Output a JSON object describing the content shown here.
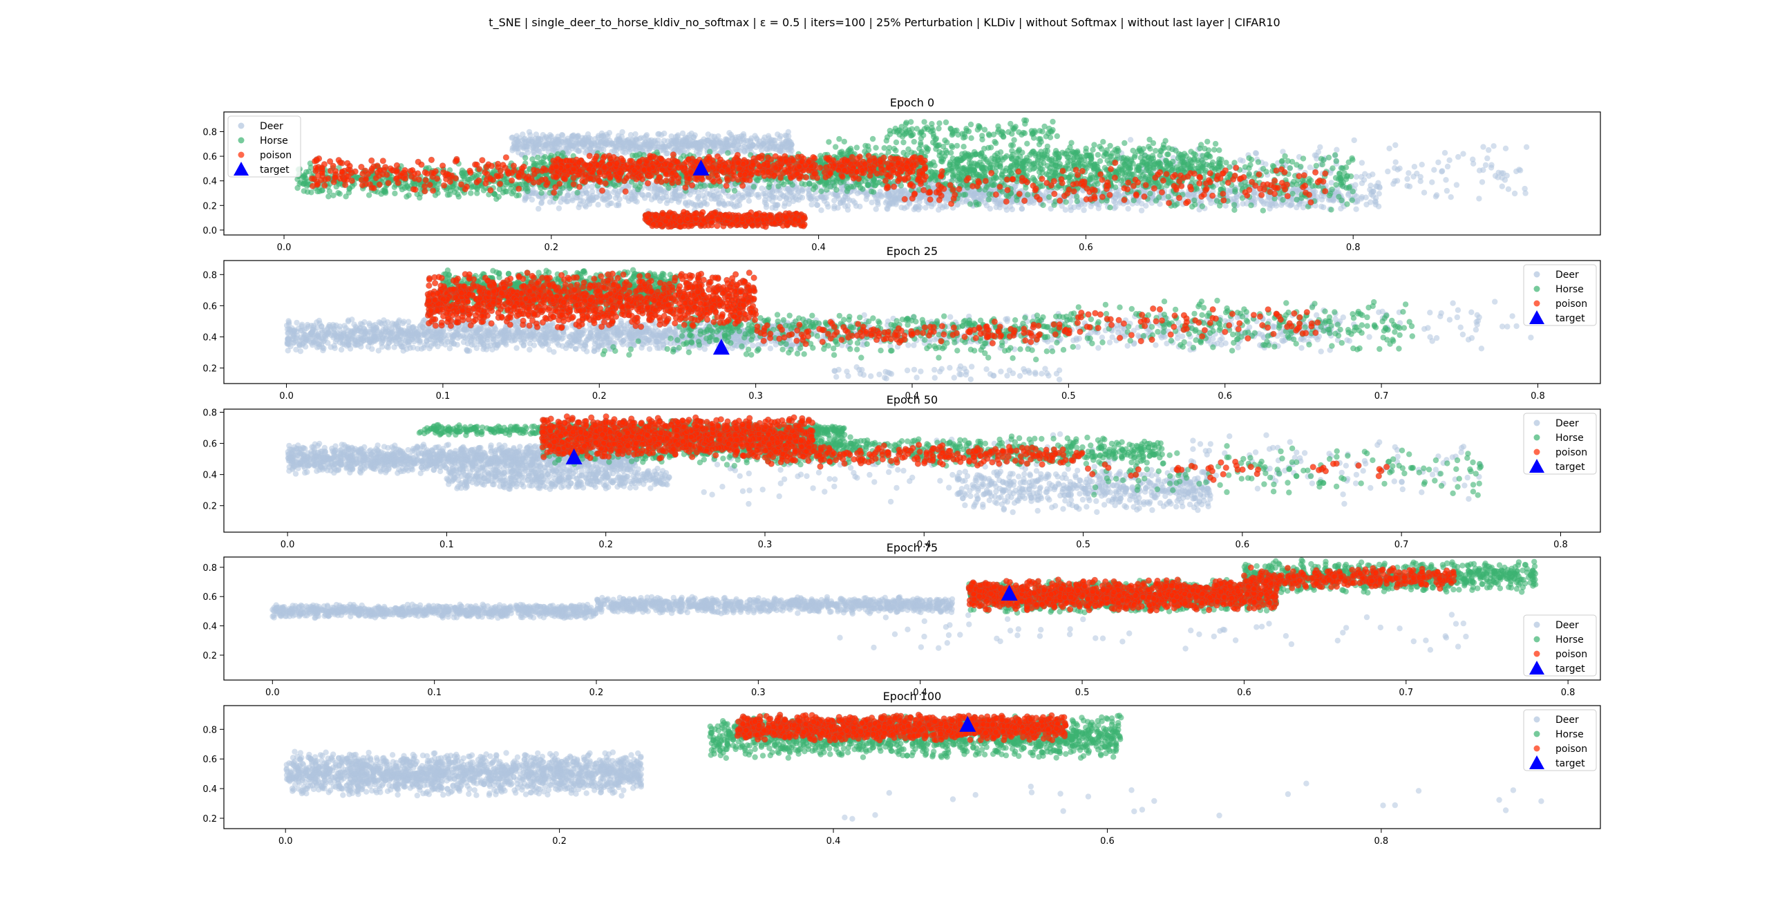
{
  "figure": {
    "suptitle": "t_SNE | single_deer_to_horse_kldiv_no_softmax | ε = 0.5 | iters=100 | 25% Perturbation | KLDiv | without Softmax | without last layer | CIFAR10"
  },
  "legend_labels": [
    "Deer",
    "Horse",
    "poison",
    "target"
  ],
  "colors": {
    "deer": "#b0c4de",
    "horse": "#3cb371",
    "poison": "#ff2a00",
    "poison_edge": "#c0503a",
    "target": "#0000ff"
  },
  "chart_data": [
    {
      "type": "scatter",
      "title": "Epoch 0",
      "xlim": [
        -0.045,
        0.985
      ],
      "ylim": [
        -0.04,
        0.96
      ],
      "xticks": [
        "0.0",
        "0.2",
        "0.4",
        "0.6",
        "0.8"
      ],
      "yticks": [
        "0.0",
        "0.2",
        "0.4",
        "0.6",
        "0.8"
      ],
      "legend_loc": "upper left",
      "target": [
        0.312,
        0.5
      ],
      "deer": [
        {
          "x": [
            0.17,
            0.38
          ],
          "y": [
            0.6,
            0.8
          ],
          "n": 700
        },
        {
          "x": [
            0.18,
            0.55
          ],
          "y": [
            0.15,
            0.45
          ],
          "n": 800
        },
        {
          "x": [
            0.45,
            0.82
          ],
          "y": [
            0.15,
            0.4
          ],
          "n": 700
        },
        {
          "x": [
            0.62,
            0.93
          ],
          "y": [
            0.2,
            0.75
          ],
          "n": 200
        }
      ],
      "horse": [
        {
          "x": [
            0.01,
            0.22
          ],
          "y": [
            0.25,
            0.55
          ],
          "n": 500
        },
        {
          "x": [
            0.18,
            0.45
          ],
          "y": [
            0.3,
            0.65
          ],
          "n": 700
        },
        {
          "x": [
            0.4,
            0.7
          ],
          "y": [
            0.3,
            0.75
          ],
          "n": 900
        },
        {
          "x": [
            0.5,
            0.8
          ],
          "y": [
            0.15,
            0.65
          ],
          "n": 500
        },
        {
          "x": [
            0.45,
            0.58
          ],
          "y": [
            0.7,
            0.9
          ],
          "n": 120
        }
      ],
      "poison": [
        {
          "x": [
            0.02,
            0.35
          ],
          "y": [
            0.3,
            0.6
          ],
          "n": 350
        },
        {
          "x": [
            0.2,
            0.48
          ],
          "y": [
            0.4,
            0.62
          ],
          "n": 700
        },
        {
          "x": [
            0.27,
            0.39
          ],
          "y": [
            0.02,
            0.15
          ],
          "n": 550
        },
        {
          "x": [
            0.45,
            0.78
          ],
          "y": [
            0.2,
            0.55
          ],
          "n": 220
        }
      ]
    },
    {
      "type": "scatter",
      "title": "Epoch 25",
      "xlim": [
        -0.04,
        0.84
      ],
      "ylim": [
        0.1,
        0.89
      ],
      "xticks": [
        "0.0",
        "0.1",
        "0.2",
        "0.3",
        "0.4",
        "0.5",
        "0.6",
        "0.7",
        "0.8"
      ],
      "yticks": [
        "0.2",
        "0.4",
        "0.6",
        "0.8"
      ],
      "legend_loc": "upper right",
      "target": [
        0.278,
        0.33
      ],
      "deer": [
        {
          "x": [
            0.0,
            0.33
          ],
          "y": [
            0.3,
            0.52
          ],
          "n": 1500
        },
        {
          "x": [
            0.33,
            0.68
          ],
          "y": [
            0.3,
            0.55
          ],
          "n": 400
        },
        {
          "x": [
            0.35,
            0.5
          ],
          "y": [
            0.12,
            0.22
          ],
          "n": 60
        },
        {
          "x": [
            0.6,
            0.8
          ],
          "y": [
            0.3,
            0.65
          ],
          "n": 60
        }
      ],
      "horse": [
        {
          "x": [
            0.1,
            0.25
          ],
          "y": [
            0.55,
            0.84
          ],
          "n": 900
        },
        {
          "x": [
            0.25,
            0.5
          ],
          "y": [
            0.35,
            0.55
          ],
          "n": 400
        },
        {
          "x": [
            0.5,
            0.72
          ],
          "y": [
            0.3,
            0.65
          ],
          "n": 250
        },
        {
          "x": [
            0.2,
            0.5
          ],
          "y": [
            0.25,
            0.4
          ],
          "n": 80
        }
      ],
      "poison": [
        {
          "x": [
            0.09,
            0.3
          ],
          "y": [
            0.45,
            0.82
          ],
          "n": 1300
        },
        {
          "x": [
            0.3,
            0.5
          ],
          "y": [
            0.35,
            0.5
          ],
          "n": 150
        },
        {
          "x": [
            0.5,
            0.66
          ],
          "y": [
            0.35,
            0.6
          ],
          "n": 80
        }
      ]
    },
    {
      "type": "scatter",
      "title": "Epoch 50",
      "xlim": [
        -0.04,
        0.825
      ],
      "ylim": [
        0.03,
        0.82
      ],
      "xticks": [
        "0.0",
        "0.1",
        "0.2",
        "0.3",
        "0.4",
        "0.5",
        "0.6",
        "0.7",
        "0.8"
      ],
      "yticks": [
        "0.2",
        "0.4",
        "0.6",
        "0.8"
      ],
      "legend_loc": "upper right",
      "target": [
        0.18,
        0.51
      ],
      "deer": [
        {
          "x": [
            0.0,
            0.22
          ],
          "y": [
            0.4,
            0.6
          ],
          "n": 1400
        },
        {
          "x": [
            0.1,
            0.24
          ],
          "y": [
            0.3,
            0.45
          ],
          "n": 400
        },
        {
          "x": [
            0.42,
            0.58
          ],
          "y": [
            0.15,
            0.45
          ],
          "n": 500
        },
        {
          "x": [
            0.26,
            0.75
          ],
          "y": [
            0.2,
            0.7
          ],
          "n": 250
        }
      ],
      "horse": [
        {
          "x": [
            0.08,
            0.35
          ],
          "y": [
            0.65,
            0.72
          ],
          "n": 500
        },
        {
          "x": [
            0.16,
            0.35
          ],
          "y": [
            0.45,
            0.75
          ],
          "n": 700
        },
        {
          "x": [
            0.3,
            0.55
          ],
          "y": [
            0.45,
            0.65
          ],
          "n": 500
        },
        {
          "x": [
            0.5,
            0.75
          ],
          "y": [
            0.25,
            0.6
          ],
          "n": 150
        }
      ],
      "poison": [
        {
          "x": [
            0.16,
            0.33
          ],
          "y": [
            0.5,
            0.78
          ],
          "n": 1200
        },
        {
          "x": [
            0.3,
            0.5
          ],
          "y": [
            0.45,
            0.6
          ],
          "n": 250
        },
        {
          "x": [
            0.5,
            0.7
          ],
          "y": [
            0.35,
            0.5
          ],
          "n": 40
        }
      ]
    },
    {
      "type": "scatter",
      "title": "Epoch 75",
      "xlim": [
        -0.03,
        0.82
      ],
      "ylim": [
        0.03,
        0.87
      ],
      "xticks": [
        "0.0",
        "0.1",
        "0.2",
        "0.3",
        "0.4",
        "0.5",
        "0.6",
        "0.7",
        "0.8"
      ],
      "yticks": [
        "0.2",
        "0.4",
        "0.6",
        "0.8"
      ],
      "legend_loc": "lower right",
      "target": [
        0.455,
        0.62
      ],
      "deer": [
        {
          "x": [
            0.0,
            0.2
          ],
          "y": [
            0.45,
            0.55
          ],
          "n": 800
        },
        {
          "x": [
            0.2,
            0.42
          ],
          "y": [
            0.48,
            0.6
          ],
          "n": 900
        },
        {
          "x": [
            0.35,
            0.75
          ],
          "y": [
            0.2,
            0.5
          ],
          "n": 60
        }
      ],
      "horse": [
        {
          "x": [
            0.43,
            0.62
          ],
          "y": [
            0.48,
            0.72
          ],
          "n": 900
        },
        {
          "x": [
            0.6,
            0.78
          ],
          "y": [
            0.62,
            0.85
          ],
          "n": 700
        }
      ],
      "poison": [
        {
          "x": [
            0.43,
            0.62
          ],
          "y": [
            0.5,
            0.72
          ],
          "n": 1100
        },
        {
          "x": [
            0.6,
            0.73
          ],
          "y": [
            0.65,
            0.8
          ],
          "n": 300
        }
      ]
    },
    {
      "type": "scatter",
      "title": "Epoch 100",
      "xlim": [
        -0.045,
        0.96
      ],
      "ylim": [
        0.13,
        0.96
      ],
      "xticks": [
        "0.0",
        "0.2",
        "0.4",
        "0.6",
        "0.8"
      ],
      "yticks": [
        "0.2",
        "0.4",
        "0.6",
        "0.8"
      ],
      "legend_loc": "upper right",
      "target": [
        0.498,
        0.83
      ],
      "deer": [
        {
          "x": [
            0.0,
            0.26
          ],
          "y": [
            0.35,
            0.65
          ],
          "n": 1700
        },
        {
          "x": [
            0.4,
            0.92
          ],
          "y": [
            0.15,
            0.5
          ],
          "n": 25
        }
      ],
      "horse": [
        {
          "x": [
            0.31,
            0.61
          ],
          "y": [
            0.6,
            0.9
          ],
          "n": 1300
        }
      ],
      "poison": [
        {
          "x": [
            0.33,
            0.57
          ],
          "y": [
            0.72,
            0.9
          ],
          "n": 1200
        }
      ]
    }
  ]
}
